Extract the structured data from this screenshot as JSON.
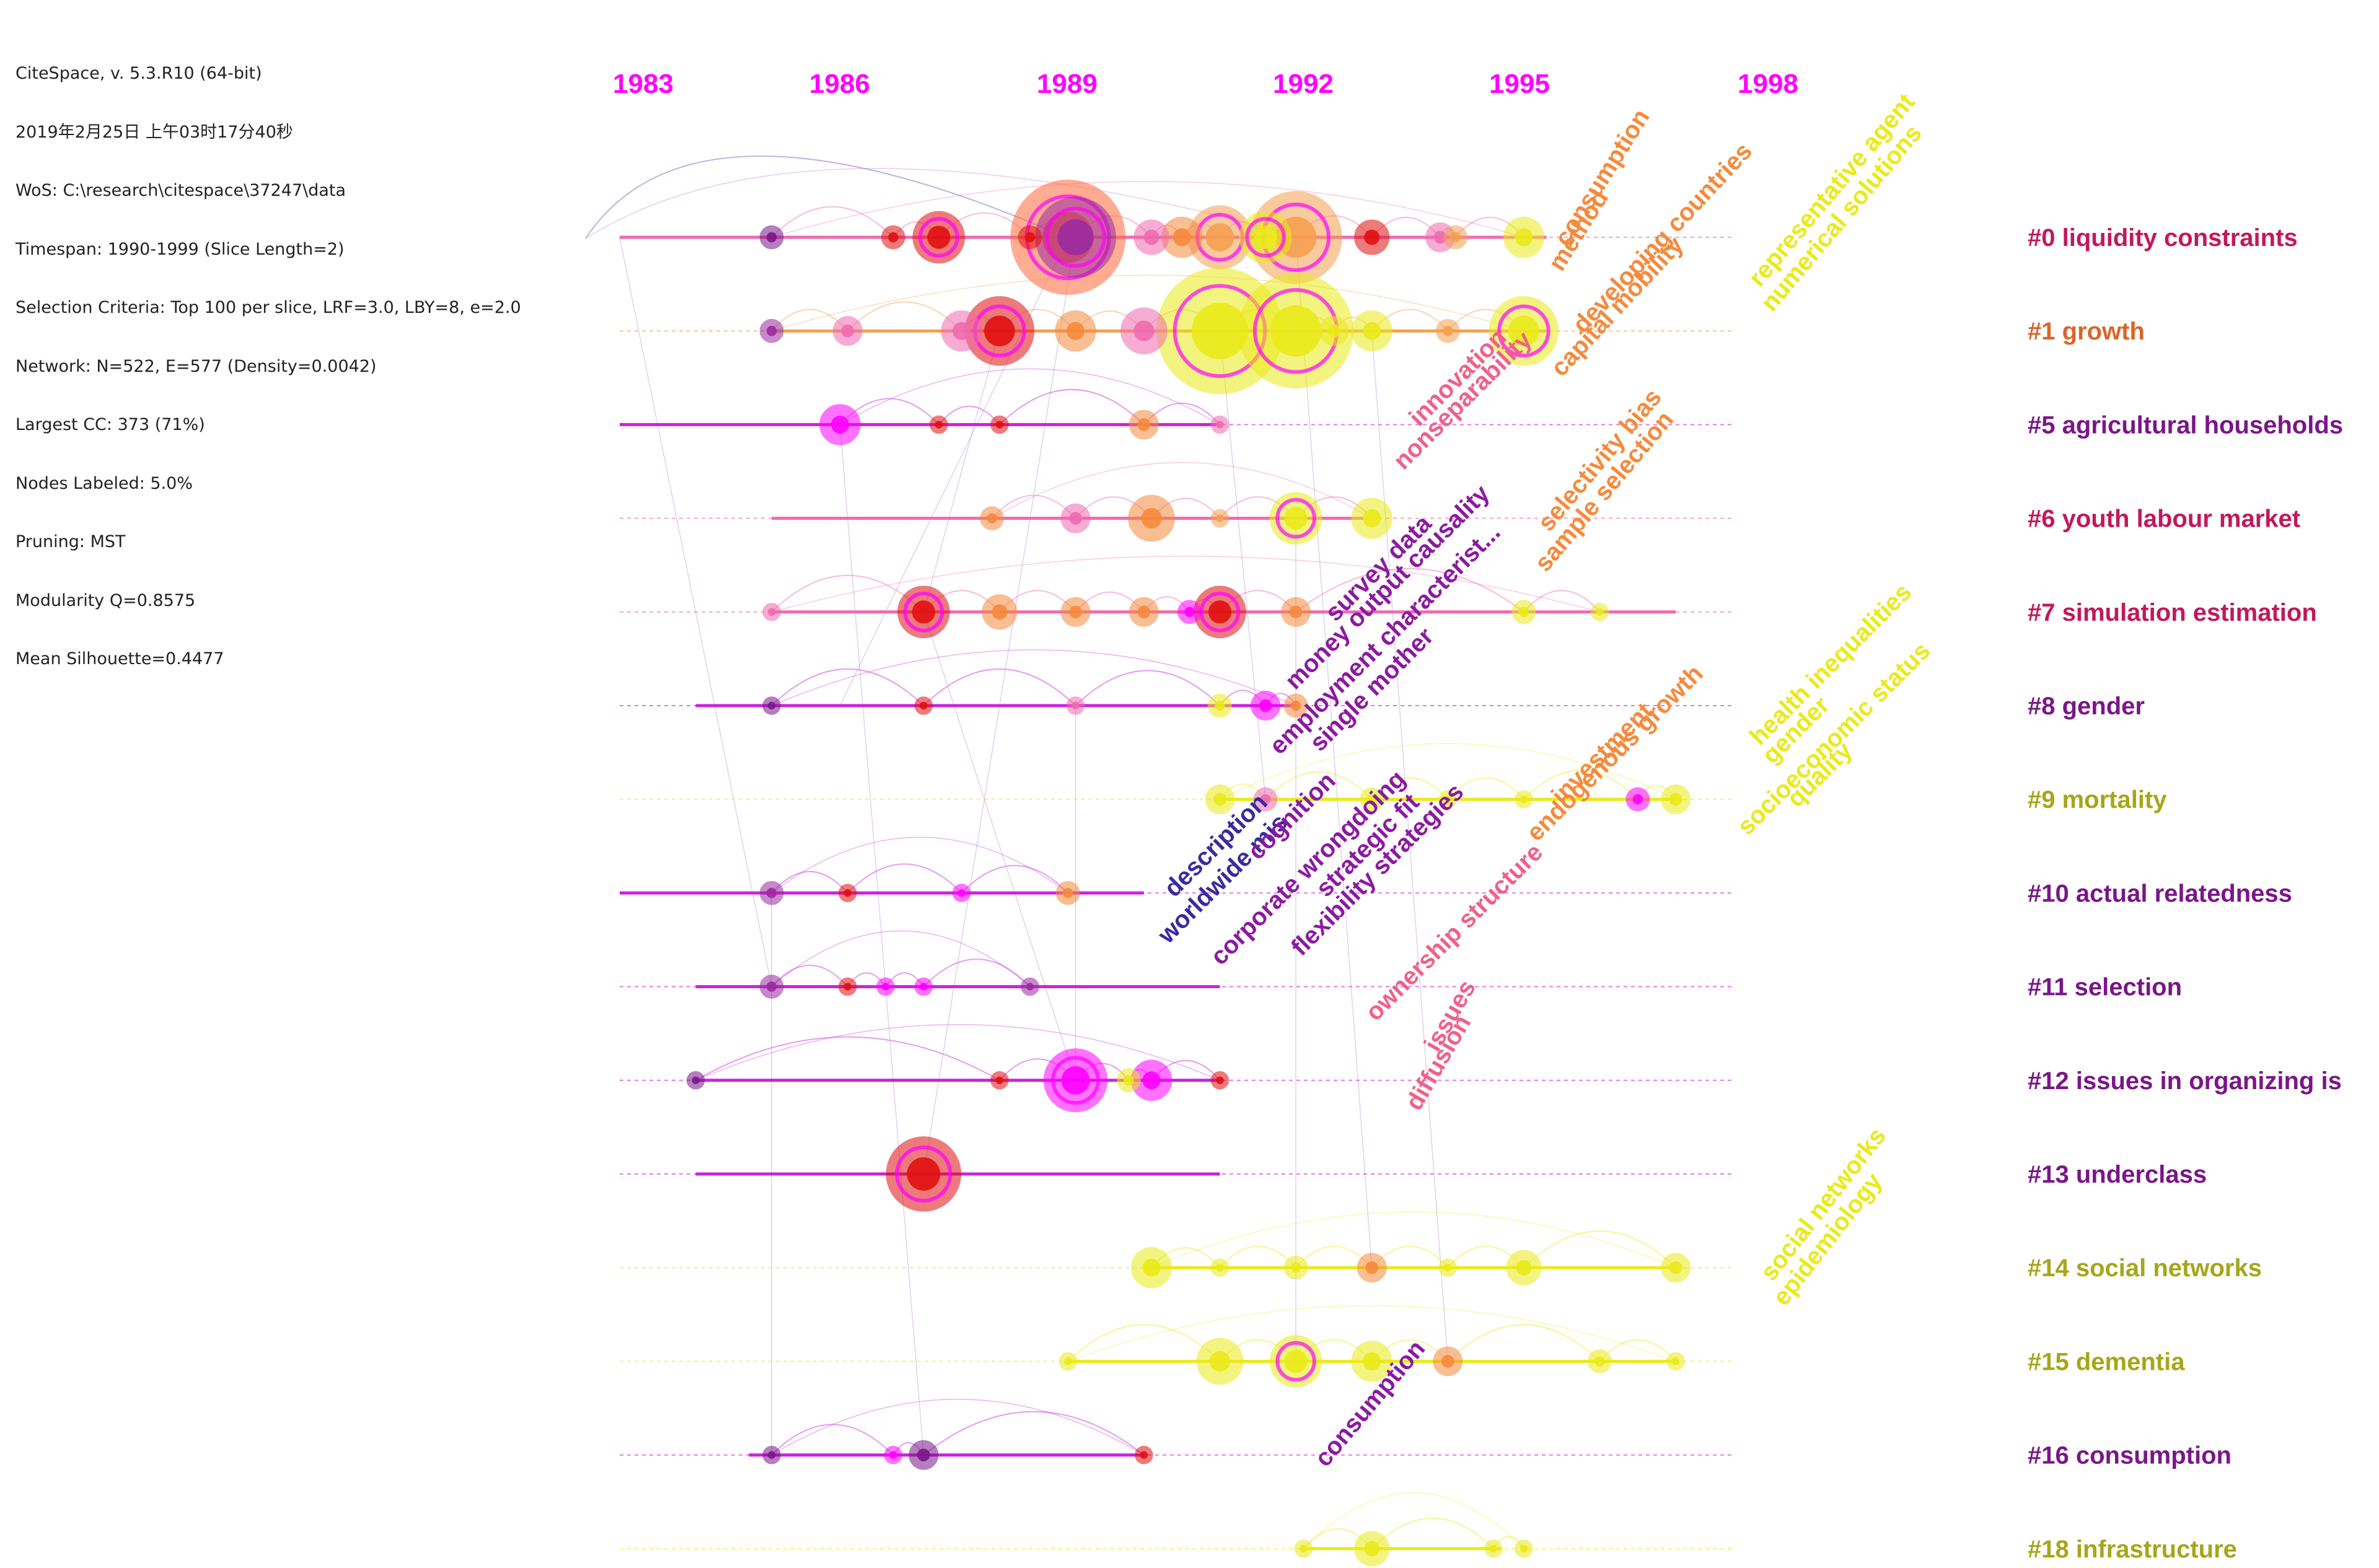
{
  "info_lines": [
    "CiteSpace, v. 5.3.R10 (64-bit)",
    "2019年2月25日 上午03时17分40秒",
    "WoS: C:\\research\\citespace\\37247\\data",
    "Timespan: 1990-1999 (Slice Length=2)",
    "Selection Criteria: Top 100 per slice, LRF=3.0, LBY=8, e=2.0",
    "Network: N=522, E=577 (Density=0.0042)",
    "Largest CC: 373 (71%)",
    "Nodes Labeled: 5.0%",
    "Pruning: MST",
    "Modularity Q=0.8575",
    "Mean Silhouette=0.4477"
  ],
  "timeline": {
    "years": [
      1983,
      1986,
      1989,
      1992,
      1995,
      1998
    ],
    "year_labels": [
      "1983",
      "1986",
      "1989",
      "1992",
      "1995",
      "1998"
    ]
  },
  "colors": {
    "magenta": "#ff00ff",
    "purple": "#8b1aa0",
    "crimson": "#c2185b",
    "pink": "#f0608a",
    "orange": "#f58a3c",
    "yellow": "#eaea1a",
    "olive": "#a6a61a",
    "deep_purple": "#7a1688",
    "red": "#e01010",
    "navy": "#3a2aa0",
    "line_pink": "#f06ab0",
    "line_magenta": "#cc22dd"
  },
  "clusters": [
    {
      "label": "#0 liquidity constraints",
      "color": "#c2185b",
      "line": "#f06ab0",
      "start": 1983,
      "end": 1995.2
    },
    {
      "label": "#1 growth",
      "color": "#d9652a",
      "line": "#f5a050",
      "start": 1985.0,
      "end": 1995.2
    },
    {
      "label": "#5 agricultural households",
      "color": "#7a1688",
      "line": "#cc22dd",
      "start": 1983,
      "end": 1990.9
    },
    {
      "label": "#6 youth labour market",
      "color": "#c2185b",
      "line": "#f06ab0",
      "start": 1985.0,
      "end": 1992.8
    },
    {
      "label": "#7 simulation estimation",
      "color": "#c2185b",
      "line": "#f06ab0",
      "start": 1985.0,
      "end": 1996.9
    },
    {
      "label": "#8 gender",
      "color": "#7a1688",
      "line": "#cc22dd",
      "start": 1984.0,
      "end": 1991.9
    },
    {
      "label": "#9 mortality",
      "color": "#a6a61a",
      "line": "#eaea1a",
      "start": 1990.9,
      "end": 1996.9
    },
    {
      "label": "#10 actual relatedness",
      "color": "#7a1688",
      "line": "#cc22dd",
      "start": 1983,
      "end": 1989.9
    },
    {
      "label": "#11 selection",
      "color": "#7a1688",
      "line": "#cc22dd",
      "start": 1984.0,
      "end": 1990.9
    },
    {
      "label": "#12 issues in organizing is",
      "color": "#7a1688",
      "line": "#cc22dd",
      "start": 1984.0,
      "end": 1990.9
    },
    {
      "label": "#13 underclass",
      "color": "#7a1688",
      "line": "#cc22dd",
      "start": 1984.0,
      "end": 1990.9
    },
    {
      "label": "#14 social networks",
      "color": "#a6a61a",
      "line": "#eaea1a",
      "start": 1989.9,
      "end": 1996.9
    },
    {
      "label": "#15 dementia",
      "color": "#a6a61a",
      "line": "#eaea1a",
      "start": 1988.9,
      "end": 1996.9
    },
    {
      "label": "#16 consumption",
      "color": "#7a1688",
      "line": "#cc22dd",
      "start": 1984.7,
      "end": 1989.9
    },
    {
      "label": "#18 infrastructure",
      "color": "#a6a61a",
      "line": "#eaea1a",
      "start": 1992.0,
      "end": 1994.6
    }
  ],
  "nodes": [
    [
      0,
      1988.9,
      20,
      "#ff6a3c"
    ],
    [
      0,
      1989.0,
      14,
      "#9a2aa0"
    ],
    [
      0,
      1987.2,
      9,
      "#e01010"
    ],
    [
      0,
      1990.9,
      11,
      "#f5a050"
    ],
    [
      0,
      1990.4,
      7,
      "#f58a3c"
    ],
    [
      0,
      1990.0,
      6,
      "#f06ab0"
    ],
    [
      0,
      1991.9,
      16,
      "#f5a050"
    ],
    [
      0,
      1991.5,
      9,
      "#eaea1a"
    ],
    [
      0,
      1992.9,
      6,
      "#e01010"
    ],
    [
      0,
      1993.8,
      5,
      "#f06ab0"
    ],
    [
      0,
      1994.9,
      7,
      "#eaea1a"
    ],
    [
      0,
      1985.0,
      4,
      "#7a1688"
    ],
    [
      0,
      1986.6,
      4,
      "#e01010"
    ],
    [
      0,
      1988.4,
      4,
      "#e01010"
    ],
    [
      0,
      1994.0,
      4,
      "#f5a050"
    ],
    [
      1,
      1990.9,
      22,
      "#eaea1a"
    ],
    [
      1,
      1991.9,
      20,
      "#eaea1a"
    ],
    [
      1,
      1988.0,
      12,
      "#e01010"
    ],
    [
      1,
      1989.9,
      8,
      "#f06ab0"
    ],
    [
      1,
      1989.0,
      7,
      "#f58a3c"
    ],
    [
      1,
      1994.9,
      12,
      "#eaea1a"
    ],
    [
      1,
      1987.5,
      7,
      "#f06ab0"
    ],
    [
      1,
      1986.0,
      5,
      "#f06ab0"
    ],
    [
      1,
      1992.9,
      7,
      "#eaea1a"
    ],
    [
      1,
      1985.0,
      4,
      "#9a2aa0"
    ],
    [
      1,
      1992.4,
      5,
      "#eaea1a"
    ],
    [
      1,
      1993.9,
      4,
      "#f5a050"
    ],
    [
      2,
      1985.9,
      7,
      "#ff00ff"
    ],
    [
      2,
      1989.9,
      5,
      "#f58a3c"
    ],
    [
      2,
      1988.0,
      3,
      "#e01010"
    ],
    [
      2,
      1987.2,
      3,
      "#e01010"
    ],
    [
      2,
      1990.9,
      3,
      "#f06ab0"
    ],
    [
      3,
      1991.9,
      9,
      "#eaea1a"
    ],
    [
      3,
      1990.0,
      8,
      "#f58a3c"
    ],
    [
      3,
      1992.9,
      7,
      "#eaea1a"
    ],
    [
      3,
      1989.0,
      5,
      "#f06ab0"
    ],
    [
      3,
      1987.9,
      4,
      "#f58a3c"
    ],
    [
      3,
      1990.9,
      3,
      "#f5a050"
    ],
    [
      4,
      1987.0,
      9,
      "#e01010"
    ],
    [
      4,
      1990.9,
      9,
      "#e01010"
    ],
    [
      4,
      1988.0,
      6,
      "#f58a3c"
    ],
    [
      4,
      1989.0,
      5,
      "#f58a3c"
    ],
    [
      4,
      1989.9,
      5,
      "#f58a3c"
    ],
    [
      4,
      1991.9,
      5,
      "#f58a3c"
    ],
    [
      4,
      1994.9,
      4,
      "#eaea1a"
    ],
    [
      4,
      1985.0,
      3,
      "#f06ab0"
    ],
    [
      4,
      1990.5,
      4,
      "#ff00ff"
    ],
    [
      4,
      1995.9,
      3,
      "#eaea1a"
    ],
    [
      5,
      1991.5,
      5,
      "#ff00ff"
    ],
    [
      5,
      1990.9,
      4,
      "#eaea1a"
    ],
    [
      5,
      1991.9,
      4,
      "#f58a3c"
    ],
    [
      5,
      1987.0,
      3,
      "#e01010"
    ],
    [
      5,
      1985.0,
      3,
      "#7a1688"
    ],
    [
      5,
      1989.0,
      3,
      "#f06ab0"
    ],
    [
      6,
      1990.9,
      5,
      "#eaea1a"
    ],
    [
      6,
      1996.9,
      5,
      "#eaea1a"
    ],
    [
      6,
      1996.4,
      4,
      "#ff00ff"
    ],
    [
      6,
      1991.5,
      4,
      "#f06ab0"
    ],
    [
      6,
      1992.9,
      4,
      "#eaea1a"
    ],
    [
      6,
      1993.9,
      3,
      "#eaea1a"
    ],
    [
      6,
      1994.9,
      3,
      "#eaea1a"
    ],
    [
      7,
      1985.0,
      4,
      "#9a2aa0"
    ],
    [
      7,
      1988.9,
      4,
      "#f58a3c"
    ],
    [
      7,
      1986.0,
      3,
      "#e01010"
    ],
    [
      7,
      1987.5,
      3,
      "#ff00ff"
    ],
    [
      8,
      1985.0,
      4,
      "#9a2aa0"
    ],
    [
      8,
      1986.0,
      3,
      "#e01010"
    ],
    [
      8,
      1987.0,
      3,
      "#ff00ff"
    ],
    [
      8,
      1988.4,
      3,
      "#9a2aa0"
    ],
    [
      8,
      1986.5,
      3,
      "#ff00ff"
    ],
    [
      9,
      1989.0,
      11,
      "#ff00ff"
    ],
    [
      9,
      1990.0,
      7,
      "#ff00ff"
    ],
    [
      9,
      1989.7,
      4,
      "#eaea1a"
    ],
    [
      9,
      1984.0,
      3,
      "#7a1688"
    ],
    [
      9,
      1988.0,
      3,
      "#e01010"
    ],
    [
      9,
      1990.9,
      3,
      "#e01010"
    ],
    [
      10,
      1987.0,
      13,
      "#e01010"
    ],
    [
      11,
      1990.0,
      7,
      "#eaea1a"
    ],
    [
      11,
      1994.9,
      6,
      "#eaea1a"
    ],
    [
      11,
      1992.9,
      5,
      "#f58a3c"
    ],
    [
      11,
      1996.9,
      5,
      "#eaea1a"
    ],
    [
      11,
      1991.9,
      4,
      "#eaea1a"
    ],
    [
      11,
      1993.9,
      3,
      "#eaea1a"
    ],
    [
      11,
      1990.9,
      3,
      "#eaea1a"
    ],
    [
      12,
      1991.9,
      9,
      "#eaea1a"
    ],
    [
      12,
      1990.9,
      8,
      "#eaea1a"
    ],
    [
      12,
      1992.9,
      7,
      "#eaea1a"
    ],
    [
      12,
      1993.9,
      5,
      "#f58a3c"
    ],
    [
      12,
      1995.9,
      4,
      "#eaea1a"
    ],
    [
      12,
      1988.9,
      3,
      "#eaea1a"
    ],
    [
      12,
      1996.9,
      3,
      "#eaea1a"
    ],
    [
      13,
      1987.0,
      5,
      "#7a1688"
    ],
    [
      13,
      1986.6,
      3,
      "#ff00ff"
    ],
    [
      13,
      1985.0,
      3,
      "#7a1688"
    ],
    [
      13,
      1989.9,
      3,
      "#e01010"
    ],
    [
      14,
      1992.9,
      6,
      "#eaea1a"
    ],
    [
      14,
      1994.5,
      3,
      "#eaea1a"
    ],
    [
      14,
      1992.0,
      3,
      "#eaea1a"
    ],
    [
      14,
      1994.9,
      3,
      "#eaea1a"
    ]
  ],
  "keywords": [
    {
      "text": "consumption",
      "color": "#f58a3c"
    },
    {
      "text": "method",
      "color": "#f58a3c"
    },
    {
      "text": "developing countries",
      "color": "#f58a3c"
    },
    {
      "text": "capital mobility",
      "color": "#f58a3c"
    },
    {
      "text": "representative agent",
      "color": "#eaea1a"
    },
    {
      "text": "numerical solutions",
      "color": "#eaea1a"
    },
    {
      "text": "innovation",
      "color": "#f0608a"
    },
    {
      "text": "nonseparability",
      "color": "#f0608a"
    },
    {
      "text": "selectivity bias",
      "color": "#f58a3c"
    },
    {
      "text": "sample selection",
      "color": "#f58a3c"
    },
    {
      "text": "survey data",
      "color": "#8b1aa0"
    },
    {
      "text": "money output causality",
      "color": "#8b1aa0"
    },
    {
      "text": "employment characterist...",
      "color": "#8b1aa0"
    },
    {
      "text": "single mother",
      "color": "#8b1aa0"
    },
    {
      "text": "health inequalities",
      "color": "#eaea1a"
    },
    {
      "text": "gender",
      "color": "#eaea1a"
    },
    {
      "text": "socioeconomic status",
      "color": "#eaea1a"
    },
    {
      "text": "quality",
      "color": "#eaea1a"
    },
    {
      "text": "investment",
      "color": "#f58a3c"
    },
    {
      "text": "endogenous growth",
      "color": "#f58a3c"
    },
    {
      "text": "description",
      "color": "#3a2aa0"
    },
    {
      "text": "worldwide mis",
      "color": "#3a2aa0"
    },
    {
      "text": "cognition",
      "color": "#8b1aa0"
    },
    {
      "text": "corporate wrongdoing",
      "color": "#8b1aa0"
    },
    {
      "text": "strategic fit",
      "color": "#8b1aa0"
    },
    {
      "text": "flexibility strategies",
      "color": "#8b1aa0"
    },
    {
      "text": "ownership structure",
      "color": "#f0608a"
    },
    {
      "text": "issues",
      "color": "#f0608a"
    },
    {
      "text": "diffusion",
      "color": "#f0608a"
    },
    {
      "text": "social networks",
      "color": "#eaea1a"
    },
    {
      "text": "epidemiology",
      "color": "#eaea1a"
    },
    {
      "text": "consumption",
      "color": "#8b1aa0"
    }
  ]
}
